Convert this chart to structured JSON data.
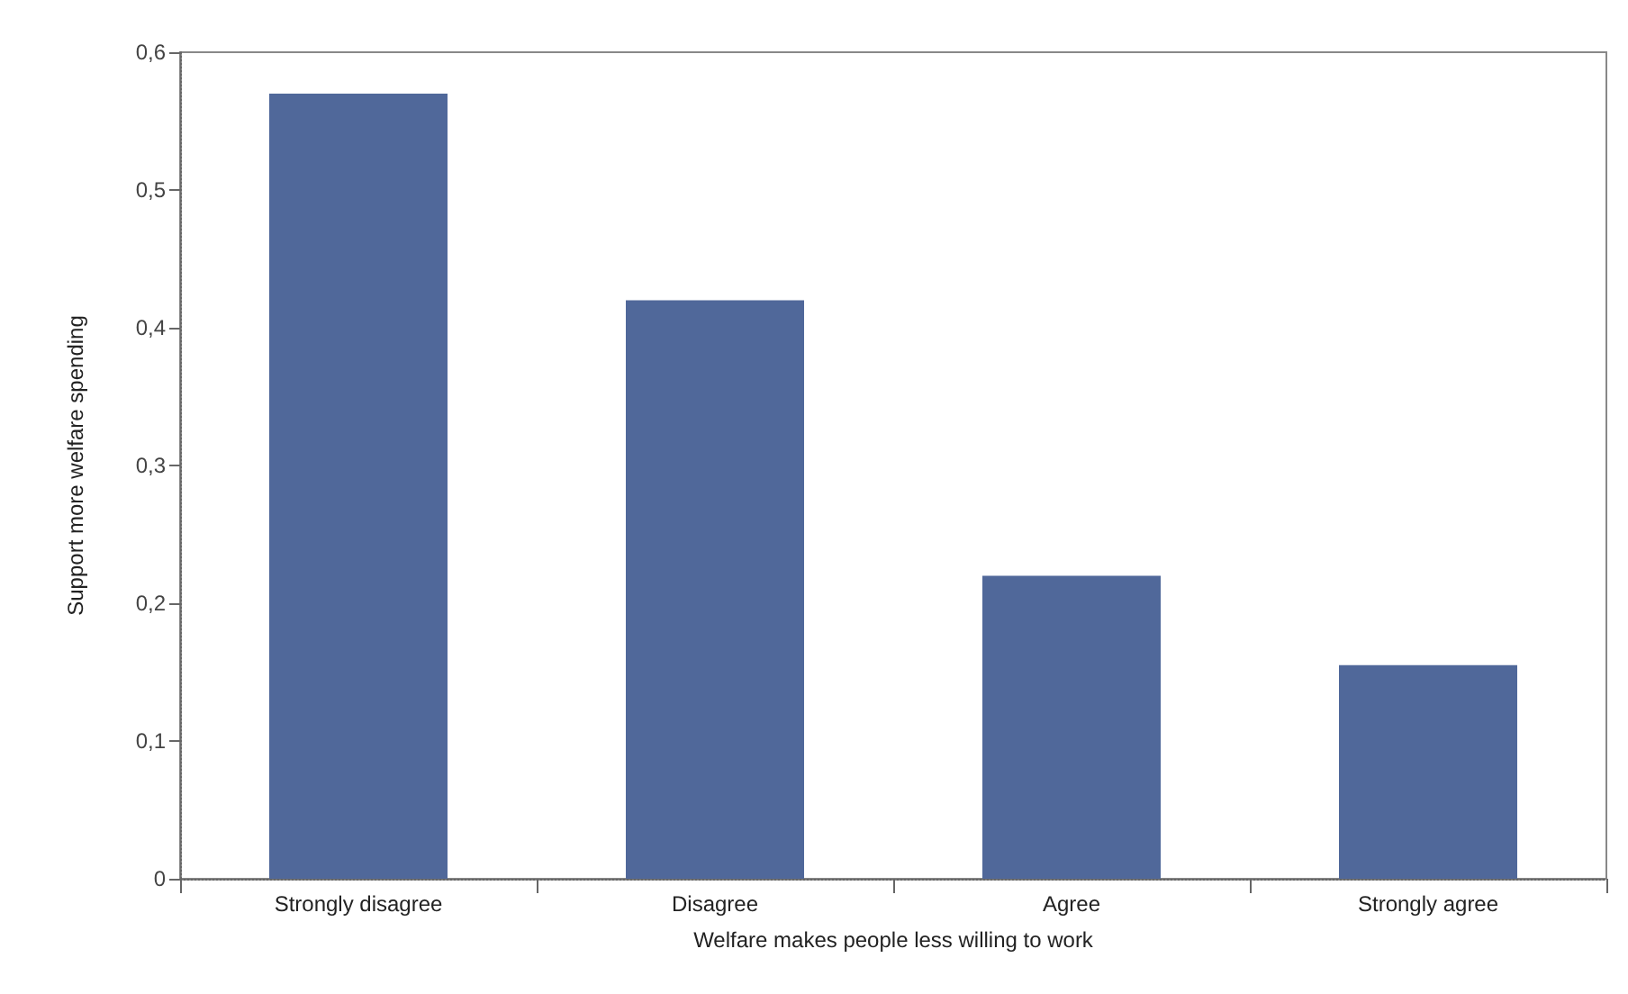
{
  "chart_data": {
    "type": "bar",
    "xlabel": "Welfare makes people less willing to work",
    "ylabel": "Support more welfare spending",
    "categories": [
      "Strongly disagree",
      "Disagree",
      "Agree",
      "Strongly agree"
    ],
    "values": [
      0.57,
      0.42,
      0.22,
      0.155
    ],
    "color": "#50689a",
    "ylim": [
      0,
      0.6
    ],
    "yticks": [
      {
        "value": 0,
        "label": "0"
      },
      {
        "value": 0.1,
        "label": "0,1"
      },
      {
        "value": 0.2,
        "label": "0,2"
      },
      {
        "value": 0.3,
        "label": "0,3"
      },
      {
        "value": 0.4,
        "label": "0,4"
      },
      {
        "value": 0.5,
        "label": "0,5"
      },
      {
        "value": 0.6,
        "label": "0,6"
      }
    ],
    "grid": false
  }
}
